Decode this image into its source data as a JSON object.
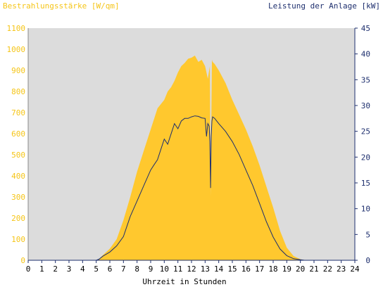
{
  "chart_data": {
    "type": "area",
    "left_axis_label": "Bestrahlungsstärke [W/qm]",
    "right_axis_label": "Leistung der Anlage [kW]",
    "xlabel": "Uhrzeit in Stunden",
    "x_range": [
      0,
      24
    ],
    "x_ticks": [
      "0",
      "1",
      "2",
      "3",
      "4",
      "5",
      "6",
      "7",
      "8",
      "9",
      "10",
      "11",
      "12",
      "13",
      "14",
      "15",
      "16",
      "17",
      "18",
      "19",
      "20",
      "21",
      "22",
      "23",
      "24"
    ],
    "y_left_range": [
      0,
      1100
    ],
    "y_left_ticks": [
      "0",
      "100",
      "200",
      "300",
      "400",
      "500",
      "600",
      "700",
      "800",
      "900",
      "1000",
      "1100"
    ],
    "y_right_range": [
      0,
      45
    ],
    "y_right_ticks": [
      "0",
      "5",
      "10",
      "15",
      "20",
      "25",
      "30",
      "35",
      "40",
      "45"
    ],
    "colors": {
      "background": "#dcdcdc",
      "irradiance_fill": "#ffc82e",
      "power_line": "#1e2f6e",
      "left_axis_text": "#f5c518",
      "right_axis_text": "#1e2f6e"
    },
    "series": [
      {
        "axis": "left",
        "style": "area",
        "x": [
          0,
          5.0,
          5.2,
          5.5,
          6.0,
          6.5,
          7.0,
          7.5,
          8.0,
          8.5,
          9.0,
          9.5,
          10.0,
          10.25,
          10.5,
          10.75,
          11.0,
          11.25,
          11.5,
          11.75,
          12.0,
          12.25,
          12.5,
          12.75,
          13.0,
          13.2,
          13.35,
          13.4,
          13.5,
          13.55,
          13.7,
          14.0,
          14.5,
          15.0,
          15.5,
          16.0,
          16.5,
          17.0,
          17.5,
          18.0,
          18.5,
          19.0,
          19.5,
          20.0,
          20.3,
          24
        ],
        "y": [
          0,
          0,
          5,
          25,
          55,
          100,
          190,
          300,
          420,
          520,
          620,
          720,
          760,
          800,
          820,
          850,
          890,
          920,
          935,
          955,
          960,
          970,
          940,
          950,
          920,
          860,
          920,
          300,
          950,
          940,
          930,
          900,
          840,
          760,
          690,
          620,
          540,
          450,
          350,
          250,
          140,
          60,
          20,
          5,
          0,
          0
        ]
      },
      {
        "axis": "right",
        "style": "line",
        "x": [
          0,
          5.0,
          5.2,
          5.5,
          6.0,
          6.5,
          7.0,
          7.5,
          8.0,
          8.5,
          9.0,
          9.25,
          9.5,
          9.75,
          10.0,
          10.25,
          10.5,
          10.75,
          11.0,
          11.25,
          11.5,
          11.75,
          12.0,
          12.25,
          12.5,
          12.75,
          13.0,
          13.1,
          13.2,
          13.3,
          13.35,
          13.4,
          13.45,
          13.5,
          13.55,
          13.7,
          14.0,
          14.5,
          15.0,
          15.5,
          16.0,
          16.5,
          17.0,
          17.5,
          18.0,
          18.5,
          19.0,
          19.5,
          20.0,
          20.3,
          24
        ],
        "y": [
          0,
          0,
          0.2,
          0.8,
          1.6,
          2.8,
          4.6,
          8.5,
          11.5,
          14.5,
          17.5,
          18.5,
          19.5,
          21.5,
          23.5,
          22.5,
          24.5,
          26.5,
          25.5,
          27.0,
          27.5,
          27.5,
          27.8,
          28.0,
          27.9,
          27.6,
          27.5,
          24.0,
          26.5,
          26.0,
          23.0,
          14.0,
          24.0,
          27.0,
          27.8,
          27.5,
          26.5,
          25.0,
          23.0,
          20.5,
          17.5,
          14.5,
          11.0,
          7.5,
          4.5,
          2.2,
          0.9,
          0.3,
          0.1,
          0,
          0
        ]
      }
    ]
  }
}
